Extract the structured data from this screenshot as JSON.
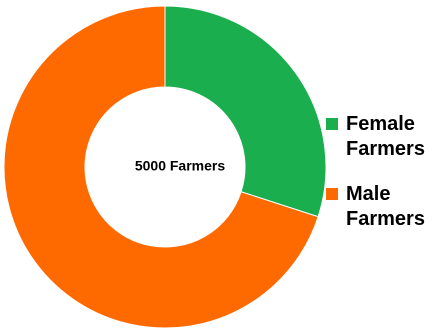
{
  "chart_data": {
    "type": "pie",
    "style": "donut",
    "center_label": "5000 Farmers",
    "categories": [
      "Female Farmers",
      "Male Farmers"
    ],
    "values": [
      30,
      70
    ],
    "colors": [
      "#1aae4e",
      "#ff6a00"
    ],
    "legend": {
      "position": "right",
      "entries": [
        "Female Farmers",
        "Male Farmers"
      ]
    }
  }
}
